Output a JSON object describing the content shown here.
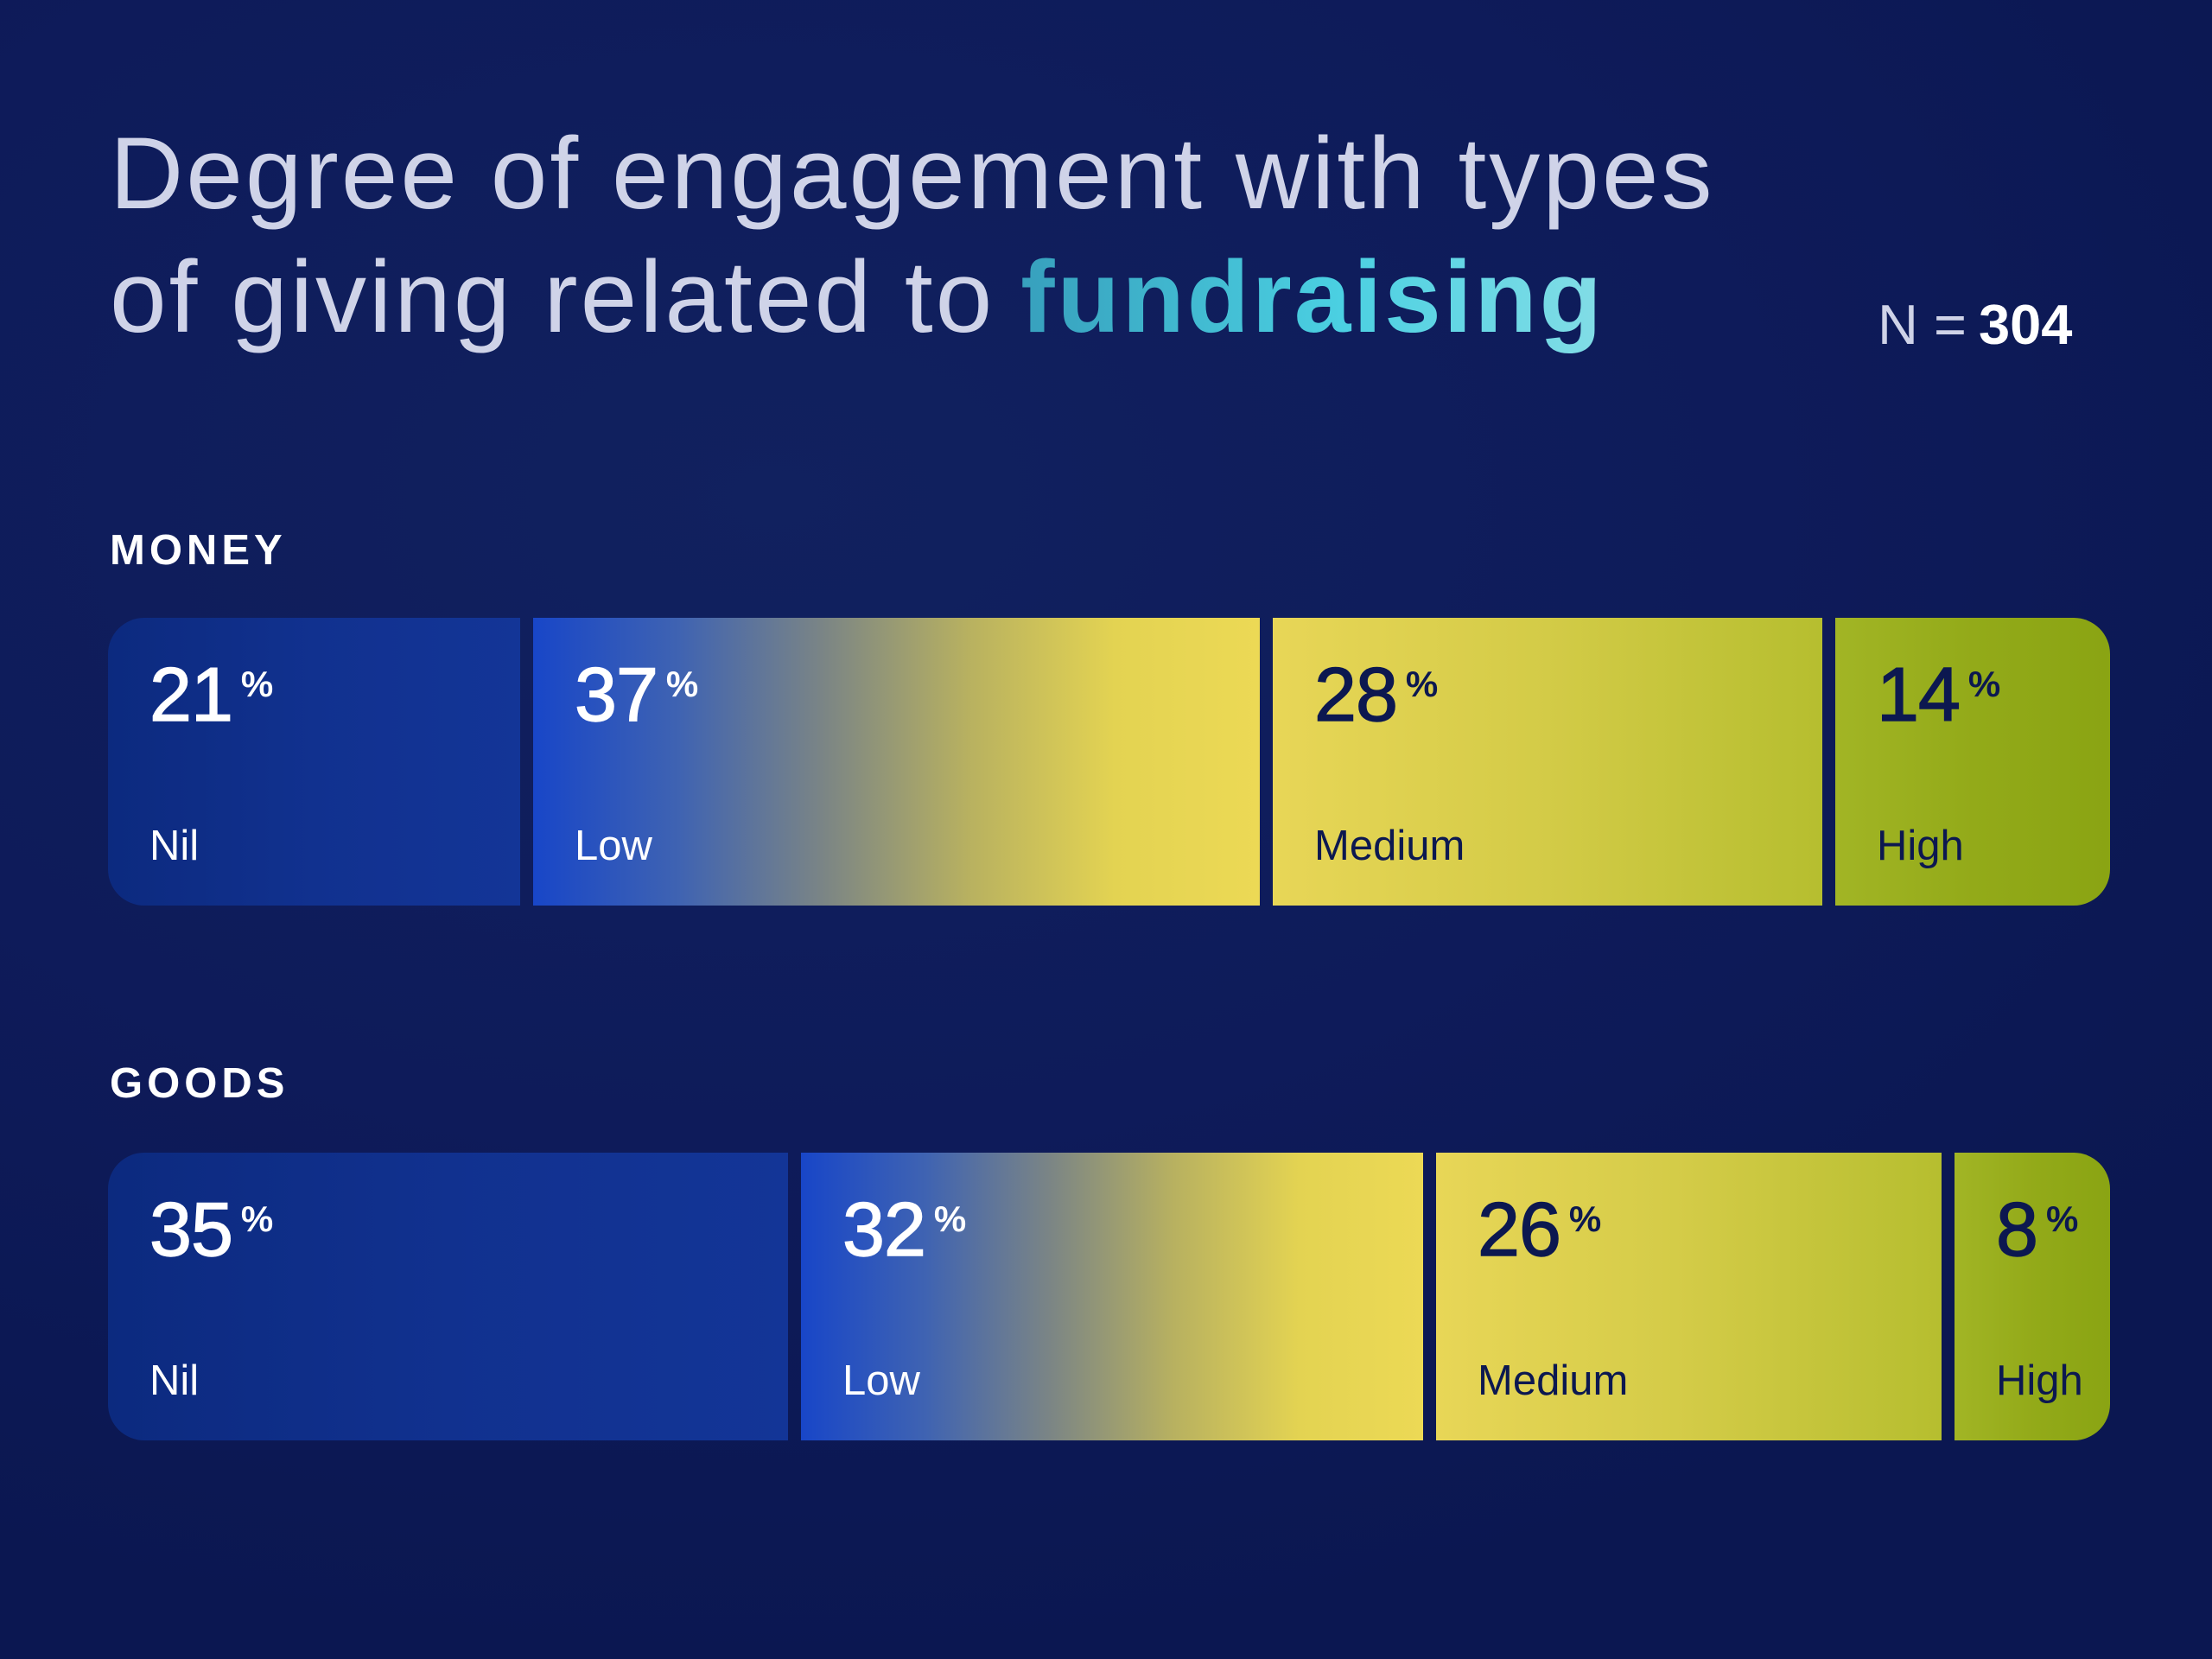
{
  "segment_styles": [
    {
      "colors": [
        "#0c2a7f",
        "#11318f",
        "#133597"
      ],
      "text_color": "#ffffff"
    },
    {
      "colors": [
        "#1846c8",
        "#3f63b2",
        "#7b8585",
        "#b8b160",
        "#e3d352",
        "#ecd955"
      ],
      "text_color": "#ffffff"
    },
    {
      "colors": [
        "#e8d657",
        "#d3cb47",
        "#b6be2f"
      ],
      "text_color": "#0c1850"
    },
    {
      "colors": [
        "#a2b525",
        "#93aa19",
        "#8aa413"
      ],
      "text_color": "#0c1850"
    }
  ],
  "colors": {
    "background": "#0e1b5a",
    "title_text": "#cfd3e8",
    "highlight_start": "#37a0bd",
    "highlight_end": "#83dde6"
  },
  "chart_data": {
    "type": "bar",
    "stacked": true,
    "title": {
      "line1": "Degree of engagement with types",
      "line2": "of giving related to",
      "highlight": "fundraising"
    },
    "sample": {
      "label": "N =",
      "value": "304"
    },
    "categories": [
      "MONEY",
      "GOODS"
    ],
    "series": [
      {
        "name": "Nil",
        "values": [
          21,
          35
        ]
      },
      {
        "name": "Low",
        "values": [
          37,
          32
        ]
      },
      {
        "name": "Medium",
        "values": [
          28,
          26
        ]
      },
      {
        "name": "High",
        "values": [
          14,
          8
        ]
      }
    ],
    "unit": "%",
    "xlim": [
      0,
      100
    ]
  }
}
